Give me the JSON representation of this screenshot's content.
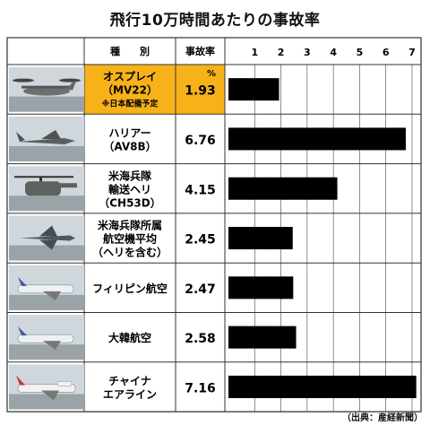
{
  "title": "飛行10万時間あたりの事故率",
  "source": "（出典：産経新聞）",
  "headers": {
    "type": "種　　別",
    "rate": "事故率"
  },
  "unit": "%",
  "colors": {
    "highlight": "#f7b219",
    "bar": "#000000",
    "border": "#333333",
    "grid": "#444444"
  },
  "chart_data": {
    "type": "bar",
    "orientation": "horizontal",
    "title": "飛行10万時間あたりの事故率",
    "xlim": [
      0,
      7
    ],
    "ticks": [
      1,
      2,
      3,
      4,
      5,
      6,
      7
    ],
    "tick_labels": [
      "1",
      "2",
      "3",
      "4",
      "5",
      "6",
      "7"
    ],
    "grid": true,
    "rows": [
      {
        "label_lines": [
          "オスプレイ",
          "（MV22）"
        ],
        "note": "※日本配備予定",
        "value": 1.93,
        "value_label": "1.93",
        "highlight": true,
        "icon": "osprey-tiltrotor-icon"
      },
      {
        "label_lines": [
          "ハリアー",
          "（AV8B）"
        ],
        "note": "",
        "value": 6.76,
        "value_label": "6.76",
        "highlight": false,
        "icon": "harrier-jet-icon"
      },
      {
        "label_lines": [
          "米海兵隊",
          "輸送ヘリ",
          "（CH53D）"
        ],
        "note": "",
        "value": 4.15,
        "value_label": "4.15",
        "highlight": false,
        "icon": "transport-helicopter-icon"
      },
      {
        "label_lines": [
          "米海兵隊所属",
          "航空機平均",
          "（ヘリを含む）"
        ],
        "note": "",
        "value": 2.45,
        "value_label": "2.45",
        "highlight": false,
        "icon": "fighter-jet-icon"
      },
      {
        "label_lines": [
          "フィリピン航空"
        ],
        "note": "",
        "value": 2.47,
        "value_label": "2.47",
        "highlight": false,
        "icon": "airliner-icon"
      },
      {
        "label_lines": [
          "大韓航空"
        ],
        "note": "",
        "value": 2.58,
        "value_label": "2.58",
        "highlight": false,
        "icon": "airliner-icon"
      },
      {
        "label_lines": [
          "チャイナ",
          "エアライン"
        ],
        "note": "",
        "value": 7.16,
        "value_label": "7.16",
        "highlight": false,
        "icon": "jumbo-jet-icon"
      }
    ]
  }
}
